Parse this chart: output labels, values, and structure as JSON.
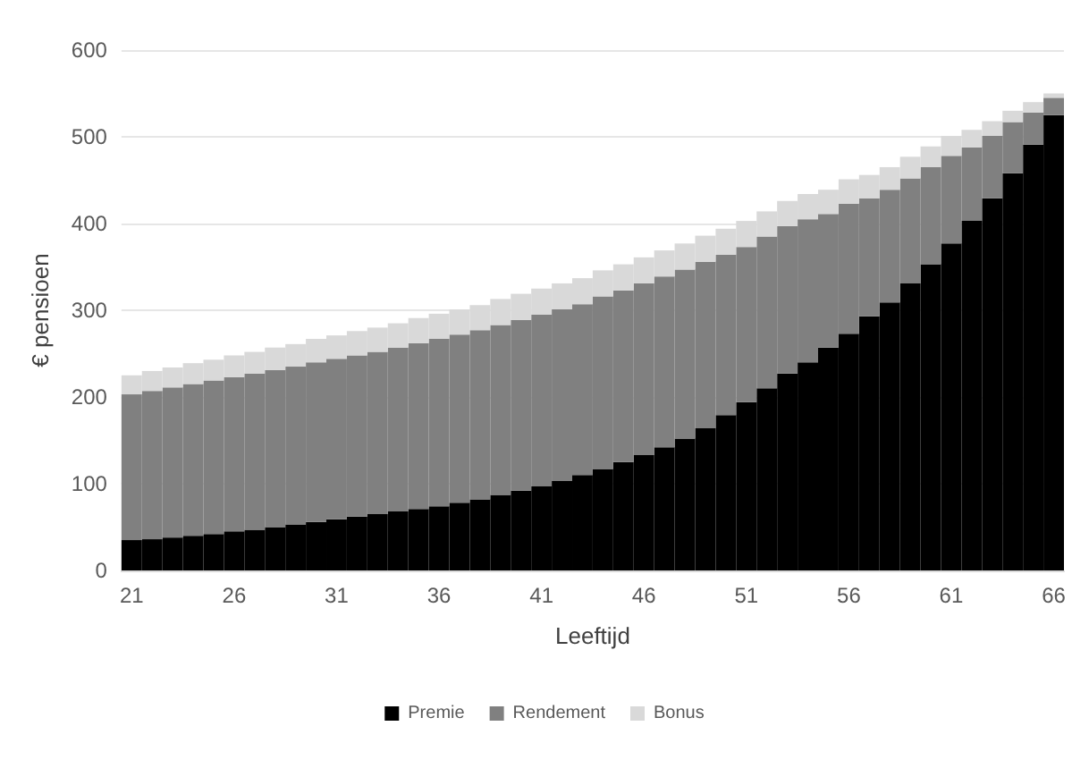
{
  "chart_data": {
    "type": "bar",
    "stacked": true,
    "xlabel": "Leeftijd",
    "ylabel": "€ pensioen",
    "categories": [
      "21",
      null,
      null,
      null,
      null,
      "26",
      null,
      null,
      null,
      null,
      "31",
      null,
      null,
      null,
      null,
      "36",
      null,
      null,
      null,
      null,
      "41",
      null,
      null,
      null,
      null,
      "46",
      null,
      null,
      null,
      null,
      "51",
      null,
      null,
      null,
      null,
      "56",
      null,
      null,
      null,
      null,
      "61",
      null,
      null,
      null,
      null,
      "66"
    ],
    "series": [
      {
        "name": "Premie",
        "color": "#000000",
        "values": [
          35,
          36,
          38,
          40,
          42,
          45,
          47,
          50,
          53,
          56,
          59,
          62,
          65,
          68,
          71,
          74,
          78,
          82,
          87,
          92,
          97,
          103,
          110,
          117,
          125,
          133,
          142,
          152,
          164,
          179,
          194,
          210,
          227,
          240,
          257,
          273,
          293,
          309,
          331,
          353,
          377,
          403,
          429,
          458,
          491,
          525
        ]
      },
      {
        "name": "Rendement",
        "color": "#808080",
        "values": [
          168,
          171,
          173,
          175,
          177,
          178,
          180,
          181,
          182,
          184,
          185,
          186,
          187,
          189,
          191,
          193,
          194,
          195,
          196,
          197,
          198,
          198,
          197,
          199,
          198,
          198,
          197,
          195,
          192,
          185,
          179,
          175,
          170,
          165,
          154,
          150,
          136,
          130,
          121,
          112,
          101,
          85,
          72,
          59,
          37,
          20
        ]
      },
      {
        "name": "Bonus",
        "color": "#d9d9d9",
        "values": [
          22,
          23,
          23,
          24,
          24,
          25,
          25,
          26,
          26,
          27,
          27,
          28,
          28,
          28,
          29,
          29,
          29,
          29,
          30,
          30,
          30,
          30,
          30,
          30,
          30,
          30,
          30,
          30,
          30,
          30,
          30,
          29,
          29,
          29,
          28,
          28,
          27,
          26,
          25,
          24,
          23,
          20,
          17,
          13,
          12,
          5
        ]
      }
    ],
    "ylim": [
      0,
      600
    ],
    "yticks": [
      0,
      100,
      200,
      300,
      400,
      500,
      600
    ],
    "grid": "y",
    "legend": "bottom"
  }
}
